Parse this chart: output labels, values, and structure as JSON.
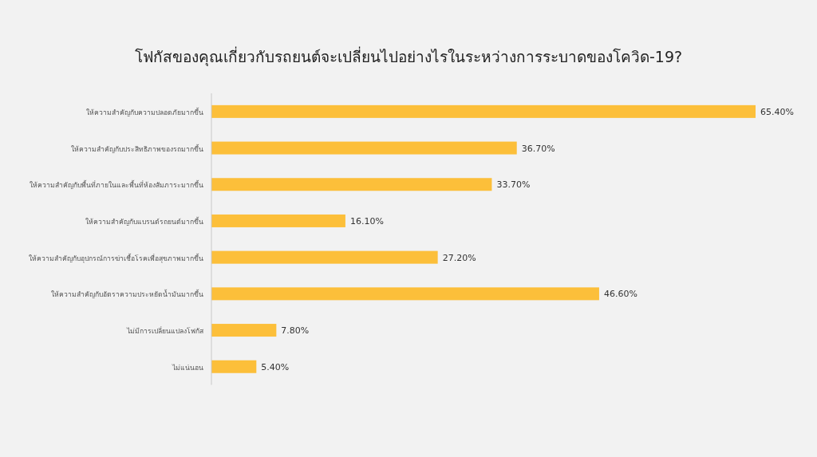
{
  "chart_data": {
    "type": "bar",
    "orientation": "horizontal",
    "title": "โฟกัสของคุณเกี่ยวกับรถยนต์จะเปลี่ยนไปอย่างไรในระหว่างการระบาดของโควิด-19?",
    "categories": [
      "ให้ความสำคัญกับความปลอดภัยมากขึ้น",
      "ให้ความสำคัญกับประสิทธิภาพของรถมากขึ้น",
      "ให้ความสำคัญกับพื้นที่ภายในและพื้นที่ห้องสัมภาระมากขึ้น",
      "ให้ความสำคัญกับแบรนด์รถยนต์มากขึ้น",
      "ให้ความสำคัญกับอุปกรณ์การฆ่าเชื้อโรคเพื่อสุขภาพมากขึ้น",
      "ให้ความสำคัญกับอัตราความประหยัดน้ำมันมากขึ้น",
      "ไม่มีการเปลี่ยนแปลงโฟกัส",
      "ไม่แน่นอน"
    ],
    "values": [
      65.4,
      36.7,
      33.7,
      16.1,
      27.2,
      46.6,
      7.8,
      5.4
    ],
    "value_labels": [
      "65.40%",
      "36.70%",
      "33.70%",
      "16.10%",
      "27.20%",
      "46.60%",
      "7.80%",
      "5.40%"
    ],
    "color": "#fcbf3a"
  }
}
